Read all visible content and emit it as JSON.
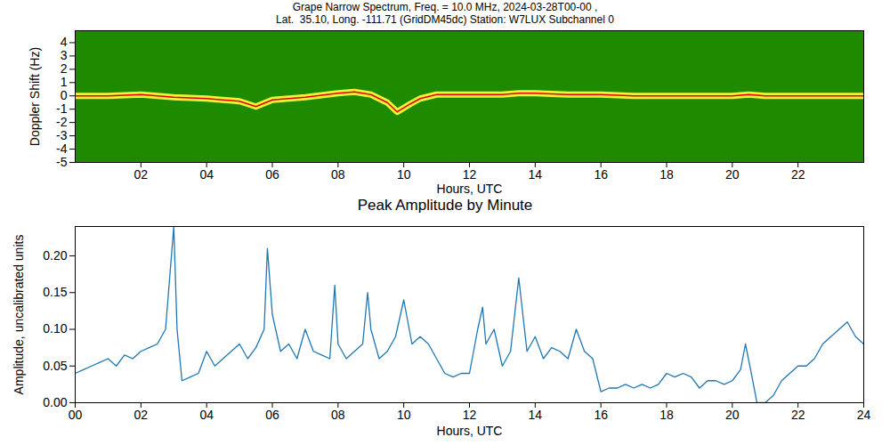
{
  "chart_data": [
    {
      "type": "line",
      "title": "Grape Narrow Spectrum, Freq. = 10.0 MHz, 2024-03-28T00-00 ,",
      "subtitle": "Lat.  35.10, Long. -111.71 (GridDM45dc) Station: W7LUX Subchannel 0",
      "x_label": "Hours, UTC",
      "y_label": "Doppler Shift (Hz)",
      "x": [
        0,
        1,
        2,
        3,
        4,
        5,
        5.5,
        6,
        7,
        8,
        8.5,
        9,
        9.5,
        9.8,
        10.2,
        10.5,
        11,
        12,
        13,
        13.5,
        14,
        15,
        16,
        17,
        18,
        19,
        20,
        20.5,
        21,
        22,
        23,
        24
      ],
      "values": [
        0,
        0,
        0.1,
        -0.1,
        -0.2,
        -0.4,
        -0.8,
        -0.3,
        -0.1,
        0.2,
        0.3,
        0.1,
        -0.5,
        -1.2,
        -0.6,
        -0.2,
        0.1,
        0.1,
        0.1,
        0.2,
        0.2,
        0.1,
        0.1,
        0,
        0,
        0,
        0,
        0.1,
        0,
        0,
        0,
        0
      ],
      "color": "#e00000",
      "xlim": [
        0,
        24
      ],
      "xticks": [
        {
          "value": 2,
          "label": "02"
        },
        {
          "value": 4,
          "label": "04"
        },
        {
          "value": 6,
          "label": "06"
        },
        {
          "value": 8,
          "label": "08"
        },
        10,
        12,
        14,
        16,
        18,
        20,
        22
      ],
      "ylim": [
        -5,
        4.9
      ],
      "yticks": [
        -5,
        -4,
        -3,
        -2,
        -1,
        0,
        1,
        2,
        3,
        4
      ],
      "grid": false
    },
    {
      "type": "line",
      "title": "Peak Amplitude by Minute",
      "x_label": "Hours, UTC",
      "y_label": "Amplitude, uncalibrated units",
      "x": [
        0,
        0.25,
        0.5,
        0.75,
        1,
        1.25,
        1.5,
        1.75,
        2,
        2.25,
        2.5,
        2.75,
        3,
        3.1,
        3.25,
        3.5,
        3.75,
        4,
        4.25,
        4.5,
        4.75,
        5,
        5.25,
        5.5,
        5.75,
        5.85,
        6,
        6.25,
        6.5,
        6.75,
        7,
        7.25,
        7.5,
        7.75,
        7.9,
        8,
        8.25,
        8.5,
        8.75,
        8.9,
        9,
        9.25,
        9.5,
        9.75,
        10,
        10.25,
        10.5,
        10.75,
        11,
        11.25,
        11.5,
        11.75,
        12,
        12.25,
        12.4,
        12.5,
        12.75,
        13,
        13.25,
        13.5,
        13.75,
        14,
        14.25,
        14.5,
        14.75,
        15,
        15.25,
        15.5,
        15.75,
        16,
        16.25,
        16.5,
        16.75,
        17,
        17.25,
        17.5,
        17.75,
        18,
        18.25,
        18.5,
        18.75,
        19,
        19.25,
        19.5,
        19.75,
        20,
        20.25,
        20.4,
        20.6,
        20.75,
        21,
        21.25,
        21.5,
        21.75,
        22,
        22.25,
        22.5,
        22.75,
        23,
        23.25,
        23.5,
        23.75,
        24
      ],
      "values": [
        0.04,
        0.045,
        0.05,
        0.055,
        0.06,
        0.05,
        0.065,
        0.06,
        0.07,
        0.075,
        0.08,
        0.1,
        0.24,
        0.1,
        0.03,
        0.035,
        0.04,
        0.07,
        0.05,
        0.06,
        0.07,
        0.08,
        0.06,
        0.075,
        0.1,
        0.21,
        0.12,
        0.07,
        0.08,
        0.06,
        0.1,
        0.07,
        0.065,
        0.06,
        0.16,
        0.08,
        0.06,
        0.07,
        0.08,
        0.15,
        0.1,
        0.06,
        0.07,
        0.09,
        0.14,
        0.08,
        0.09,
        0.08,
        0.06,
        0.04,
        0.035,
        0.04,
        0.04,
        0.1,
        0.13,
        0.08,
        0.1,
        0.05,
        0.07,
        0.17,
        0.07,
        0.09,
        0.06,
        0.075,
        0.07,
        0.06,
        0.1,
        0.07,
        0.06,
        0.015,
        0.02,
        0.02,
        0.025,
        0.02,
        0.025,
        0.02,
        0.025,
        0.04,
        0.035,
        0.04,
        0.035,
        0.02,
        0.03,
        0.03,
        0.025,
        0.03,
        0.045,
        0.08,
        0.035,
        0.0,
        0.0,
        0.01,
        0.03,
        0.04,
        0.05,
        0.05,
        0.06,
        0.08,
        0.09,
        0.1,
        0.11,
        0.09,
        0.08
      ],
      "color": "#1f77b4",
      "xlim": [
        0,
        24
      ],
      "xticks": [
        {
          "value": 0,
          "label": "00"
        },
        {
          "value": 2,
          "label": "02"
        },
        {
          "value": 4,
          "label": "04"
        },
        {
          "value": 6,
          "label": "06"
        },
        {
          "value": 8,
          "label": "08"
        },
        10,
        12,
        14,
        16,
        18,
        20,
        22,
        24
      ],
      "ylim": [
        0,
        0.24
      ],
      "yticks": [
        {
          "value": 0,
          "label": "0.00"
        },
        {
          "value": 0.05,
          "label": "0.05"
        },
        {
          "value": 0.1,
          "label": "0.10"
        },
        {
          "value": 0.15,
          "label": "0.15"
        },
        {
          "value": 0.2,
          "label": "0.20"
        }
      ],
      "grid": false
    }
  ]
}
